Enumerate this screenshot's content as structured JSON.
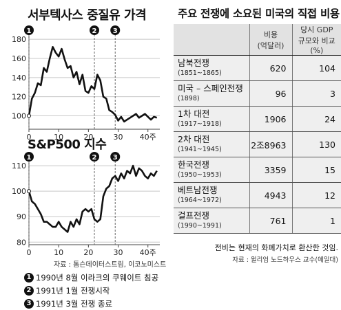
{
  "oil_chart": {
    "title": "서부텍사스 중질유 가격",
    "x_suffix": "주",
    "chart_data": {
      "type": "line",
      "title": "서부텍사스 중질유 가격",
      "x_tick_labels": [
        "0",
        "10",
        "20",
        "30",
        "40주"
      ],
      "y_tick_labels": [
        "100",
        "120",
        "140",
        "160",
        "180"
      ],
      "xlim": [
        0,
        44
      ],
      "ylim": [
        86,
        188
      ],
      "x": [
        0,
        1,
        2,
        3,
        4,
        5,
        6,
        7,
        8,
        9,
        10,
        11,
        12,
        13,
        14,
        15,
        16,
        17,
        18,
        19,
        20,
        21,
        22,
        23,
        24,
        25,
        26,
        27,
        28,
        29,
        30,
        31,
        32,
        33,
        34,
        35,
        36,
        37,
        38,
        39,
        40,
        41,
        42,
        43
      ],
      "values": [
        100,
        118,
        124,
        134,
        132,
        150,
        146,
        160,
        172,
        166,
        162,
        170,
        159,
        150,
        152,
        140,
        146,
        133,
        143,
        126,
        124,
        131,
        128,
        143,
        137,
        120,
        118,
        106,
        104,
        101,
        95,
        99,
        94,
        96,
        98,
        100,
        102,
        98,
        100,
        102,
        99,
        96,
        99,
        98
      ],
      "markers": [
        {
          "label": "1",
          "x": 0
        },
        {
          "label": "2",
          "x": 22
        },
        {
          "label": "3",
          "x": 29
        }
      ]
    }
  },
  "sp_chart": {
    "title": "S&P500 지수",
    "chart_data": {
      "type": "line",
      "title": "S&P500 지수",
      "x_tick_labels": [
        "0",
        "10",
        "20",
        "30",
        "40주"
      ],
      "y_tick_labels": [
        "80",
        "90",
        "100",
        "110"
      ],
      "xlim": [
        0,
        44
      ],
      "ylim": [
        79,
        113
      ],
      "x": [
        0,
        1,
        2,
        3,
        4,
        5,
        6,
        7,
        8,
        9,
        10,
        11,
        12,
        13,
        14,
        15,
        16,
        17,
        18,
        19,
        20,
        21,
        22,
        23,
        24,
        25,
        26,
        27,
        28,
        29,
        30,
        31,
        32,
        33,
        34,
        35,
        36,
        37,
        38,
        39,
        40,
        41,
        42,
        43
      ],
      "values": [
        100,
        96,
        95,
        93,
        91,
        88,
        88,
        87,
        86,
        86,
        88,
        86,
        85,
        84,
        88,
        86,
        89,
        87,
        92,
        93,
        92,
        93,
        89,
        88,
        89,
        98,
        101,
        102,
        105,
        106,
        104,
        107,
        105,
        108,
        107,
        110,
        106,
        109,
        108,
        106,
        105,
        107,
        106,
        108
      ],
      "markers": [
        {
          "label": "1",
          "x": 0
        },
        {
          "label": "2",
          "x": 22
        },
        {
          "label": "3",
          "x": 29
        }
      ]
    }
  },
  "source_left": "자료 : 톰슨데이터스트림, 이코노미스트",
  "events": [
    {
      "marker": "1",
      "text": "1990년 8월 이라크의 쿠웨이트 침공"
    },
    {
      "marker": "2",
      "text": "1991년 1월 전쟁시작"
    },
    {
      "marker": "3",
      "text": "1991년 3월 전쟁 종료"
    }
  ],
  "war_table": {
    "title": "주요 전쟁에 소요된 미국의 직접 비용",
    "header_cost": [
      "비용",
      "(억달러)"
    ],
    "header_gdp": [
      "당시 GDP",
      "규모와 비교(%)"
    ],
    "rows": [
      {
        "name": "남북전쟁",
        "years": "(1851~1865)",
        "cost": "620",
        "gdp": "104"
      },
      {
        "name": "미국 – 스페인전쟁",
        "years": "(1898)",
        "cost": "96",
        "gdp": "3"
      },
      {
        "name": "1차 대전",
        "years": "(1917~1918)",
        "cost": "1906",
        "gdp": "24"
      },
      {
        "name": "2차 대전",
        "years": "(1941~1945)",
        "cost": "2조8963",
        "gdp": "130"
      },
      {
        "name": "한국전쟁",
        "years": "(1950~1953)",
        "cost": "3359",
        "gdp": "15"
      },
      {
        "name": "베트남전쟁",
        "years": "(1964~1972)",
        "cost": "4943",
        "gdp": "12"
      },
      {
        "name": "걸프전쟁",
        "years": "(1990~1991)",
        "cost": "761",
        "gdp": "1"
      }
    ],
    "note": "전비는 현재의 화폐가치로 환산한 것임.",
    "source": "자료 : 윌리엄 노드하우스 교수(예일대)"
  }
}
